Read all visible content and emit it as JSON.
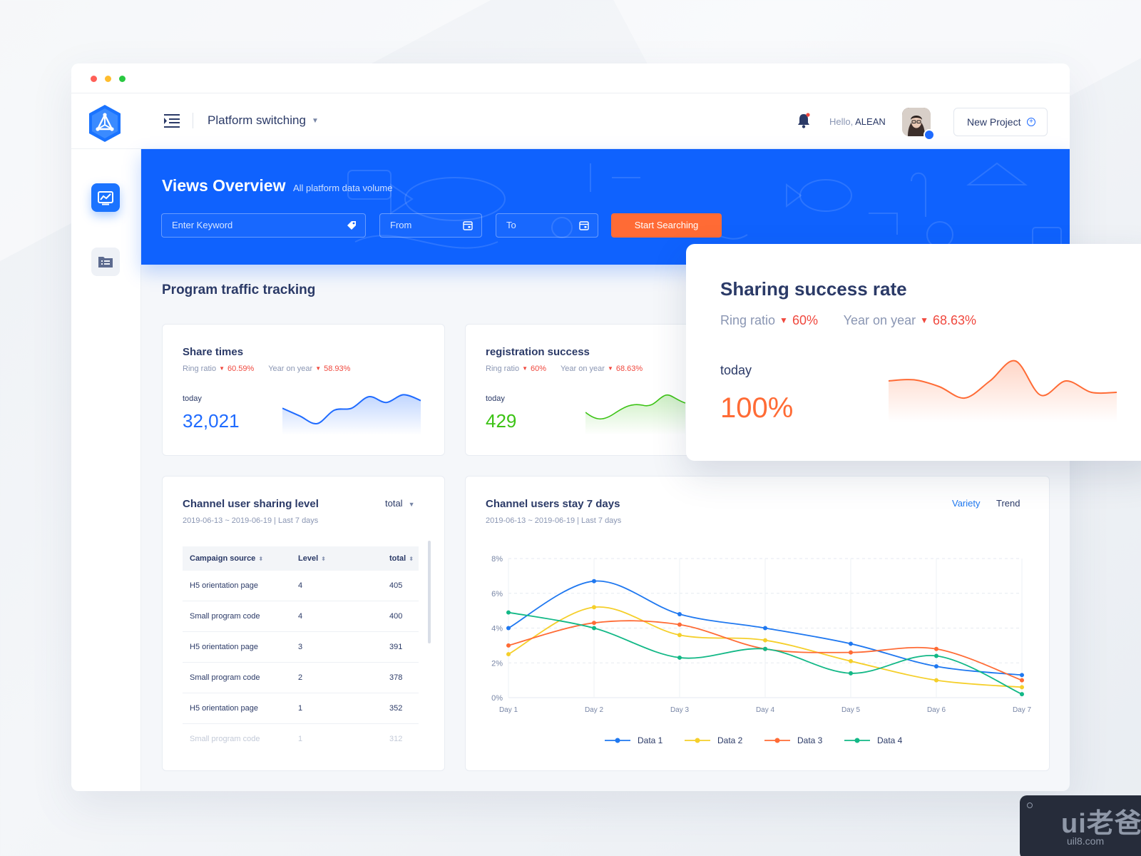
{
  "header": {
    "platform_label": "Platform switching",
    "hello_prefix": "Hello, ",
    "user_name": "ALEAN",
    "new_project_label": "New Project"
  },
  "banner": {
    "title": "Views Overview",
    "subtitle": "All platform data volume",
    "keyword_placeholder": "Enter Keyword",
    "from_placeholder": "From",
    "to_placeholder": "To",
    "search_label": "Start Searching"
  },
  "section_title": "Program traffic tracking",
  "cards": {
    "share": {
      "title": "Share times",
      "ring_label": "Ring ratio",
      "ring_value": "60.59%",
      "yoy_label": "Year on year",
      "yoy_value": "58.93%",
      "today_label": "today",
      "value": "32,021",
      "sparkline": [
        0.55,
        0.35,
        0.15,
        0.5,
        0.55,
        0.85,
        0.7,
        0.9,
        0.75
      ],
      "color": "#1f6bff"
    },
    "registration": {
      "title": "registration success",
      "ring_label": "Ring ratio",
      "ring_value": "60%",
      "yoy_label": "Year on year",
      "yoy_value": "68.63%",
      "today_label": "today",
      "value": "429",
      "color": "#3cc315"
    }
  },
  "table_card": {
    "title": "Channel user sharing level",
    "dropdown_value": "total",
    "date_range": "2019-06-13 ~ 2019-06-19 | Last 7 days",
    "columns": [
      "Campaign source",
      "Level",
      "total"
    ],
    "rows": [
      [
        "H5 orientation page",
        "4",
        "405"
      ],
      [
        "Small program code",
        "4",
        "400"
      ],
      [
        "H5 orientation page",
        "3",
        "391"
      ],
      [
        "Small program code",
        "2",
        "378"
      ],
      [
        "H5 orientation page",
        "1",
        "352"
      ],
      [
        "Small program code",
        "1",
        "312"
      ]
    ]
  },
  "chart_card": {
    "title": "Channel users stay 7 days",
    "date_range": "2019-06-13 ~ 2019-06-19 | Last 7 days",
    "toggle_variety": "Variety",
    "toggle_trend": "Trend"
  },
  "chart_data": {
    "type": "line",
    "x": [
      "Day 1",
      "Day 2",
      "Day 3",
      "Day 4",
      "Day 5",
      "Day 6",
      "Day 7"
    ],
    "y_ticks": [
      "0%",
      "2%",
      "4%",
      "6%",
      "8%"
    ],
    "ylim": [
      0,
      8
    ],
    "grid": true,
    "legend": "bottom",
    "series": [
      {
        "name": "Data 1",
        "color": "#1f78f0",
        "values": [
          4.0,
          6.7,
          4.8,
          4.0,
          3.1,
          1.8,
          1.3
        ]
      },
      {
        "name": "Data 2",
        "color": "#f5cf2a",
        "values": [
          2.5,
          5.2,
          3.6,
          3.3,
          2.1,
          1.0,
          0.6
        ]
      },
      {
        "name": "Data 3",
        "color": "#ff6b35",
        "values": [
          3.0,
          4.3,
          4.2,
          2.8,
          2.6,
          2.8,
          1.0
        ]
      },
      {
        "name": "Data 4",
        "color": "#12b886",
        "values": [
          4.9,
          4.0,
          2.3,
          2.8,
          1.4,
          2.4,
          0.2
        ]
      }
    ]
  },
  "overlay": {
    "title": "Sharing success rate",
    "ring_label": "Ring ratio",
    "ring_value": "60%",
    "yoy_label": "Year on year",
    "yoy_value": "68.63%",
    "today_label": "today",
    "value": "100%",
    "sparkline": [
      0.6,
      0.62,
      0.5,
      0.3,
      0.6,
      0.95,
      0.35,
      0.6,
      0.4,
      0.4
    ],
    "color": "#ff6b35"
  },
  "watermark": {
    "logo_text": "ui老爸",
    "url": "uil8.com"
  }
}
